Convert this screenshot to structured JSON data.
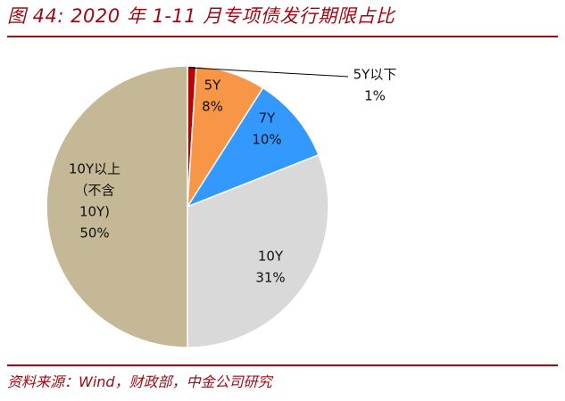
{
  "header": {
    "title": "图 44: 2020 年 1-11 月专项债发行期限占比"
  },
  "footer": {
    "source": "资料来源：Wind，财政部，中金公司研究"
  },
  "chart_data": {
    "type": "pie",
    "start_angle_deg": 0,
    "direction": "clockwise",
    "slices": [
      {
        "label_lines": [
          "5Y以下",
          "1%"
        ],
        "value": 1,
        "color": "#c00000"
      },
      {
        "label_lines": [
          "5Y",
          "8%"
        ],
        "value": 8,
        "color": "#f79646"
      },
      {
        "label_lines": [
          "7Y",
          "10%"
        ],
        "value": 10,
        "color": "#3399ff"
      },
      {
        "label_lines": [
          "10Y",
          "31%"
        ],
        "value": 31,
        "color": "#d9d9d9"
      },
      {
        "label_lines": [
          "10Y以上",
          "（不含",
          "10Y)",
          "50%"
        ],
        "value": 50,
        "color": "#c4b896"
      }
    ]
  }
}
